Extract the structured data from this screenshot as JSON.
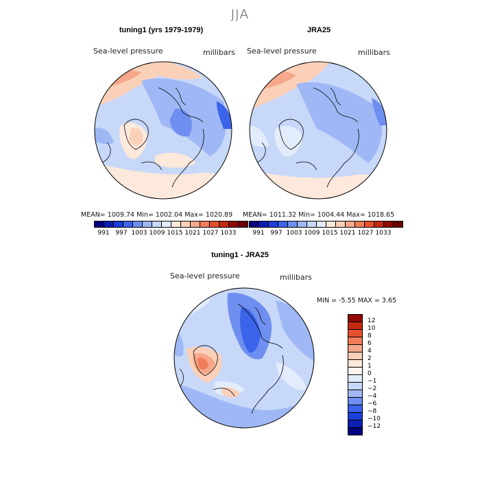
{
  "season": "JJA",
  "panels": [
    {
      "title": "tuning1 (yrs 1979-1979)",
      "variable": "Sea-level pressure",
      "units": "millibars",
      "stats": "MEAN= 1009.74   Min= 1002.04   Max= 1020.89"
    },
    {
      "title": "JRA25",
      "variable": "Sea-level pressure",
      "units": "millibars",
      "stats": "MEAN= 1011.32   Min= 1004.44   Max= 1018.65"
    }
  ],
  "diff_panel": {
    "title": "tuning1 - JRA25",
    "variable": "Sea-level pressure",
    "units": "millibars",
    "stats": "MIN =   -5.55 MAX =    3.65"
  },
  "abs_colorbar": {
    "labels": [
      "991",
      "997",
      "1003",
      "1009",
      "1015",
      "1021",
      "1027",
      "1033"
    ],
    "colors": [
      "#00007f",
      "#0d1fb0",
      "#1c3fd9",
      "#3b64ea",
      "#6f8ff0",
      "#9fb8f5",
      "#c7d8f9",
      "#e3ecfb",
      "#fde8dc",
      "#fbd0b8",
      "#f6a88a",
      "#f07c5a",
      "#e5502f",
      "#c42a10",
      "#8f0a05",
      "#6b0000"
    ]
  },
  "diff_colorbar": {
    "labels": [
      "12",
      "10",
      "8",
      "6",
      "4",
      "2",
      "1",
      "0",
      "−1",
      "−2",
      "−4",
      "−6",
      "−8",
      "−10",
      "−12"
    ],
    "colors": [
      "#8f0a05",
      "#c42a10",
      "#e5502f",
      "#f07c5a",
      "#f6a88a",
      "#fbd0b8",
      "#fde8dc",
      "#fdf4ee",
      "#e3ecfb",
      "#c7d8f9",
      "#9fb8f5",
      "#6f8ff0",
      "#3b64ea",
      "#1c3fd9",
      "#0d1fb0",
      "#00007f"
    ]
  }
}
